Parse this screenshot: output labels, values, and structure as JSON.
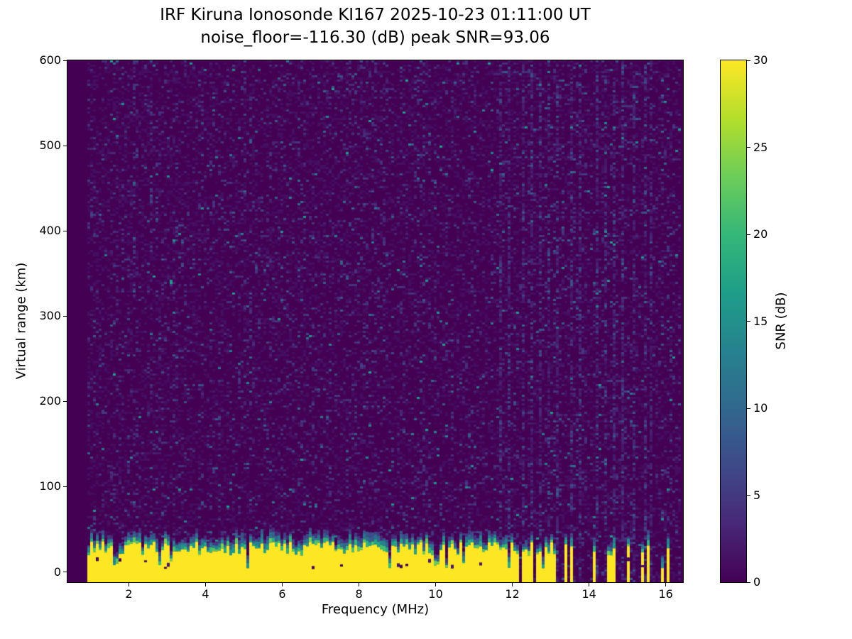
{
  "title": {
    "line1": "IRF Kiruna Ionosonde KI167 2025-10-23 01:11:00  UT",
    "line2": "noise_floor=-116.30 (dB) peak SNR=93.06"
  },
  "chart_data": {
    "type": "heatmap",
    "title": "IRF Kiruna Ionosonde KI167 2025-10-23 01:11:00  UT",
    "subtitle": "noise_floor=-116.30 (dB) peak SNR=93.06",
    "xlabel": "Frequency (MHz)",
    "ylabel": "Virtual range (km)",
    "xlim": [
      0.4,
      16.45
    ],
    "ylim": [
      -12,
      600
    ],
    "xticks": [
      2,
      4,
      6,
      8,
      10,
      12,
      14,
      16
    ],
    "yticks": [
      0,
      100,
      200,
      300,
      400,
      500,
      600
    ],
    "colormap": "viridis",
    "colorbar": {
      "label": "SNR (dB)",
      "ticks": [
        0,
        5,
        10,
        15,
        20,
        25,
        30
      ],
      "vmin": 0,
      "vmax": 30
    },
    "noise_floor_db": -116.3,
    "peak_snr_db": 93.06,
    "data_freq_range_mhz": [
      0.95,
      16.4
    ],
    "background_snr_db": 0,
    "ground_echo_band": {
      "description": "saturated near-range echo band, SNR ~30 dB, jagged top 20-38 km with teal/green transition cap",
      "continuous_mhz": [
        0.95,
        11.62
      ],
      "top_km_range": [
        19,
        36
      ],
      "max_snr_db": 30,
      "stripe_freqs_mhz": [
        11.66,
        11.74,
        11.82,
        11.9,
        11.98,
        12.06,
        12.16,
        12.28,
        12.4,
        12.52,
        12.64,
        12.76,
        12.88,
        12.98,
        13.06,
        13.38,
        13.52,
        14.12,
        14.48,
        14.62,
        15.02,
        15.42,
        15.56,
        15.92,
        16.08
      ]
    },
    "rfi_streak_freqs_mhz": [
      11.7,
      11.9,
      12.1,
      12.3,
      12.52,
      12.74,
      12.96,
      13.2,
      13.52,
      13.8,
      14.2,
      14.45,
      14.65,
      14.9,
      15.2,
      15.45,
      15.6,
      15.95,
      16.1
    ],
    "viridis_stops_rgb": [
      [
        68,
        1,
        84
      ],
      [
        72,
        40,
        120
      ],
      [
        62,
        74,
        137
      ],
      [
        49,
        104,
        142
      ],
      [
        38,
        130,
        142
      ],
      [
        31,
        158,
        137
      ],
      [
        53,
        183,
        121
      ],
      [
        109,
        205,
        89
      ],
      [
        180,
        222,
        44
      ],
      [
        253,
        231,
        37
      ]
    ]
  },
  "colors": {
    "figure_background": "#ffffff",
    "axes_edge": "#000000",
    "text": "#000000",
    "viridis_min": "#440154",
    "viridis_max": "#fde725"
  }
}
